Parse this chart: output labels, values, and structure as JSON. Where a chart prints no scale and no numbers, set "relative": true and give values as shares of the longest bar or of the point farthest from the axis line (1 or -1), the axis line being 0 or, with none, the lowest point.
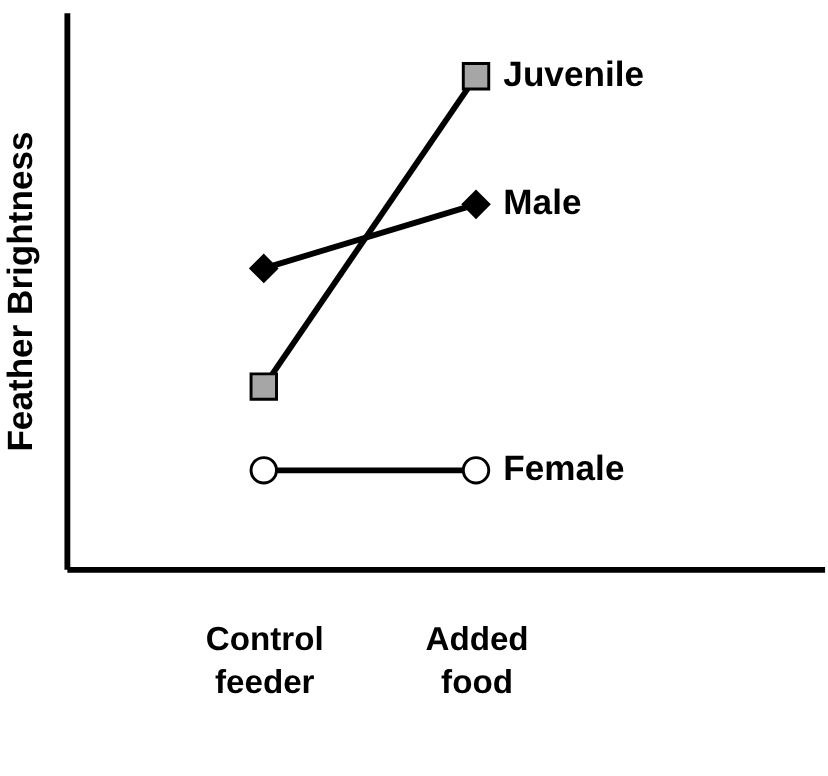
{
  "chart_data": {
    "type": "line",
    "relative": true,
    "ylabel": "Feather Brightness",
    "categories": [
      "Control feeder",
      "Added food"
    ],
    "grid": false,
    "legend": "right",
    "series": [
      {
        "name": "Juvenile",
        "color": "#a6a6a6",
        "marker": "square",
        "values": [
          0.37,
          1
        ]
      },
      {
        "name": "Male",
        "color": "#000000",
        "marker": "diamond",
        "values": [
          0.61,
          0.74
        ]
      },
      {
        "name": "Female",
        "color": "#ffffff",
        "marker": "circle",
        "values": [
          0.2,
          0.2
        ]
      }
    ]
  }
}
